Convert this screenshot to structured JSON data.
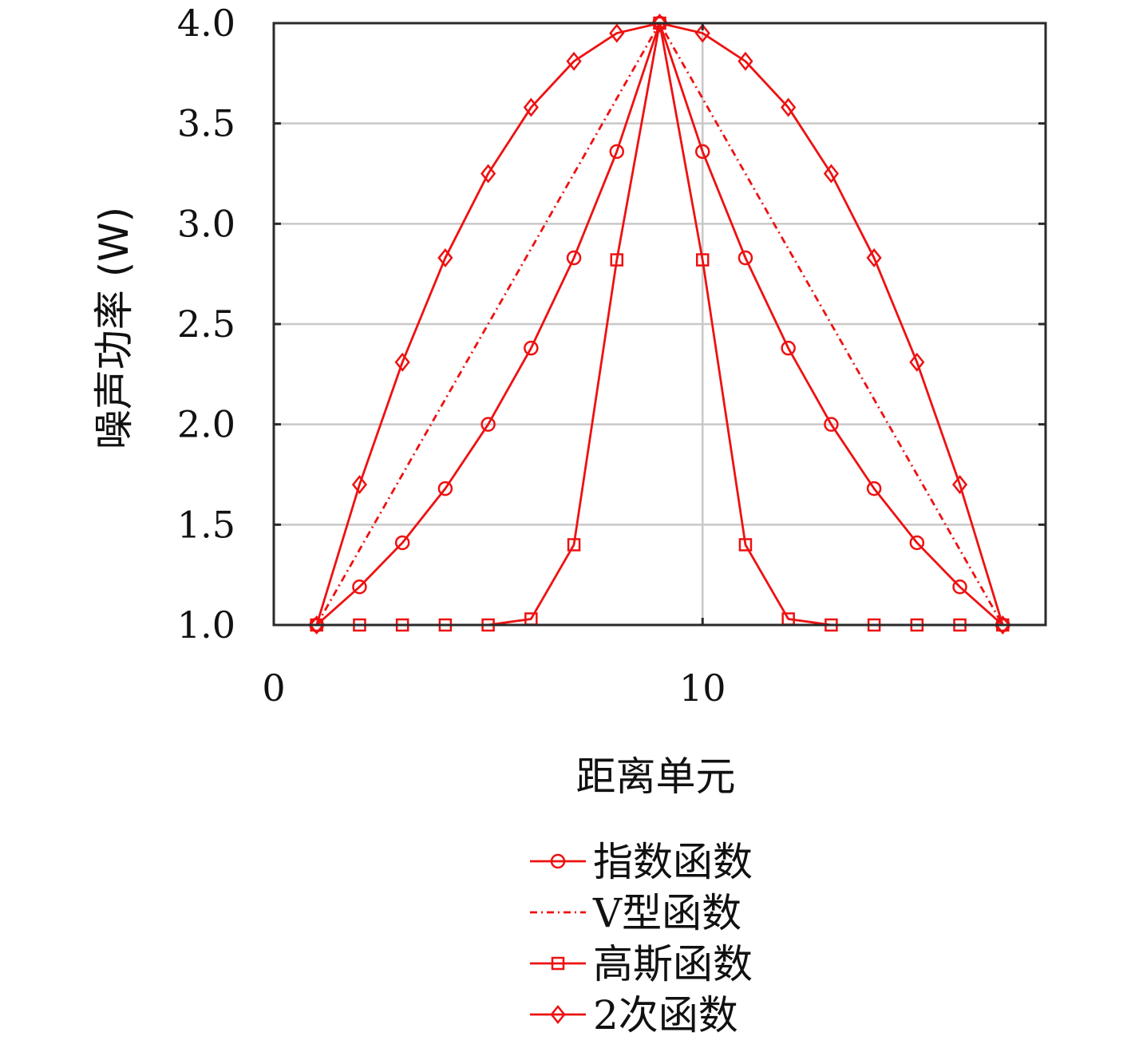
{
  "chart_data": {
    "type": "line",
    "title": "",
    "xlabel": "距离单元",
    "ylabel": "噪声功率 (W)",
    "xlim": [
      0,
      18
    ],
    "ylim": [
      1.0,
      4.0
    ],
    "xticks": [
      0,
      10
    ],
    "xtick_labels": [
      "0",
      "10"
    ],
    "yticks": [
      1.0,
      1.5,
      2.0,
      2.5,
      3.0,
      3.5,
      4.0
    ],
    "ytick_labels": [
      "1.0",
      "1.5",
      "2.0",
      "2.5",
      "3.0",
      "3.5",
      "4.0"
    ],
    "grid": true,
    "legend_position": "below",
    "color": "#ee1111",
    "x": [
      1,
      2,
      3,
      4,
      5,
      6,
      7,
      8,
      9,
      10,
      11,
      12,
      13,
      14,
      15,
      16,
      17
    ],
    "series": [
      {
        "name": "指数函数",
        "marker": "circle",
        "line": "solid",
        "values": [
          1.0,
          1.19,
          1.41,
          1.68,
          2.0,
          2.38,
          2.83,
          3.36,
          4.0,
          3.36,
          2.83,
          2.38,
          2.0,
          1.68,
          1.41,
          1.19,
          1.0
        ]
      },
      {
        "name": "V型函数",
        "marker": "none",
        "line": "dashdot",
        "values": [
          1.0,
          1.375,
          1.75,
          2.125,
          2.5,
          2.875,
          3.25,
          3.625,
          4.0,
          3.625,
          3.25,
          2.875,
          2.5,
          2.125,
          1.75,
          1.375,
          1.0
        ]
      },
      {
        "name": "高斯函数",
        "marker": "square",
        "line": "solid",
        "values": [
          1.0,
          1.0,
          1.0,
          1.0,
          1.0,
          1.03,
          1.4,
          2.82,
          4.0,
          2.82,
          1.4,
          1.03,
          1.0,
          1.0,
          1.0,
          1.0,
          1.0
        ]
      },
      {
        "name": "2次函数",
        "marker": "diamond",
        "line": "solid",
        "values": [
          1.0,
          1.7,
          2.31,
          2.83,
          3.25,
          3.58,
          3.81,
          3.95,
          4.0,
          3.95,
          3.81,
          3.58,
          3.25,
          2.83,
          2.31,
          1.7,
          1.0
        ]
      }
    ]
  }
}
